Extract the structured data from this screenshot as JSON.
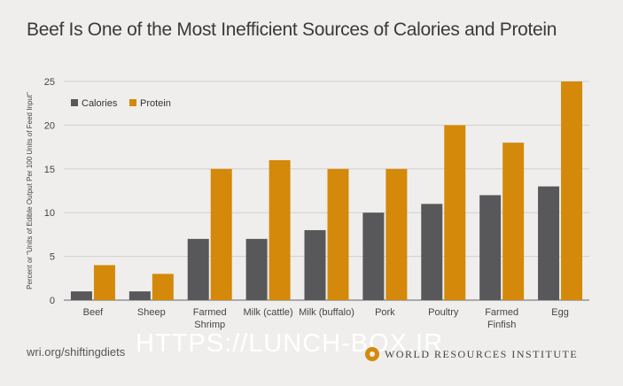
{
  "title": "Beef Is One of the Most Inefficient Sources of Calories and Protein",
  "footer_link": "wri.org/shiftingdiets",
  "watermark": "HTTPS://LUNCH-BOX.IR",
  "wri_name": "WORLD RESOURCES INSTITUTE",
  "colors": {
    "calories": "#58585a",
    "protein": "#d4890a",
    "grid": "#d2d1cf",
    "axis": "#666666"
  },
  "chart_data": {
    "type": "bar",
    "ylabel": "Percent or \"Units of Edible Output Per 100 Units of Feed Input\"",
    "ylim": [
      0,
      25
    ],
    "yticks": [
      0,
      5,
      10,
      15,
      20,
      25
    ],
    "grid": true,
    "legend_position": "top-left",
    "categories": [
      [
        "Beef"
      ],
      [
        "Sheep"
      ],
      [
        "Farmed",
        "Shrimp"
      ],
      [
        "Milk (cattle)"
      ],
      [
        "Milk (buffalo)"
      ],
      [
        "Pork"
      ],
      [
        "Poultry"
      ],
      [
        "Farmed",
        "Finfish"
      ],
      [
        "Egg"
      ]
    ],
    "series": [
      {
        "name": "Calories",
        "values": [
          1,
          1,
          7,
          7,
          8,
          10,
          11,
          12,
          13
        ]
      },
      {
        "name": "Protein",
        "values": [
          4,
          3,
          15,
          16,
          15,
          15,
          20,
          18,
          25
        ]
      }
    ]
  }
}
